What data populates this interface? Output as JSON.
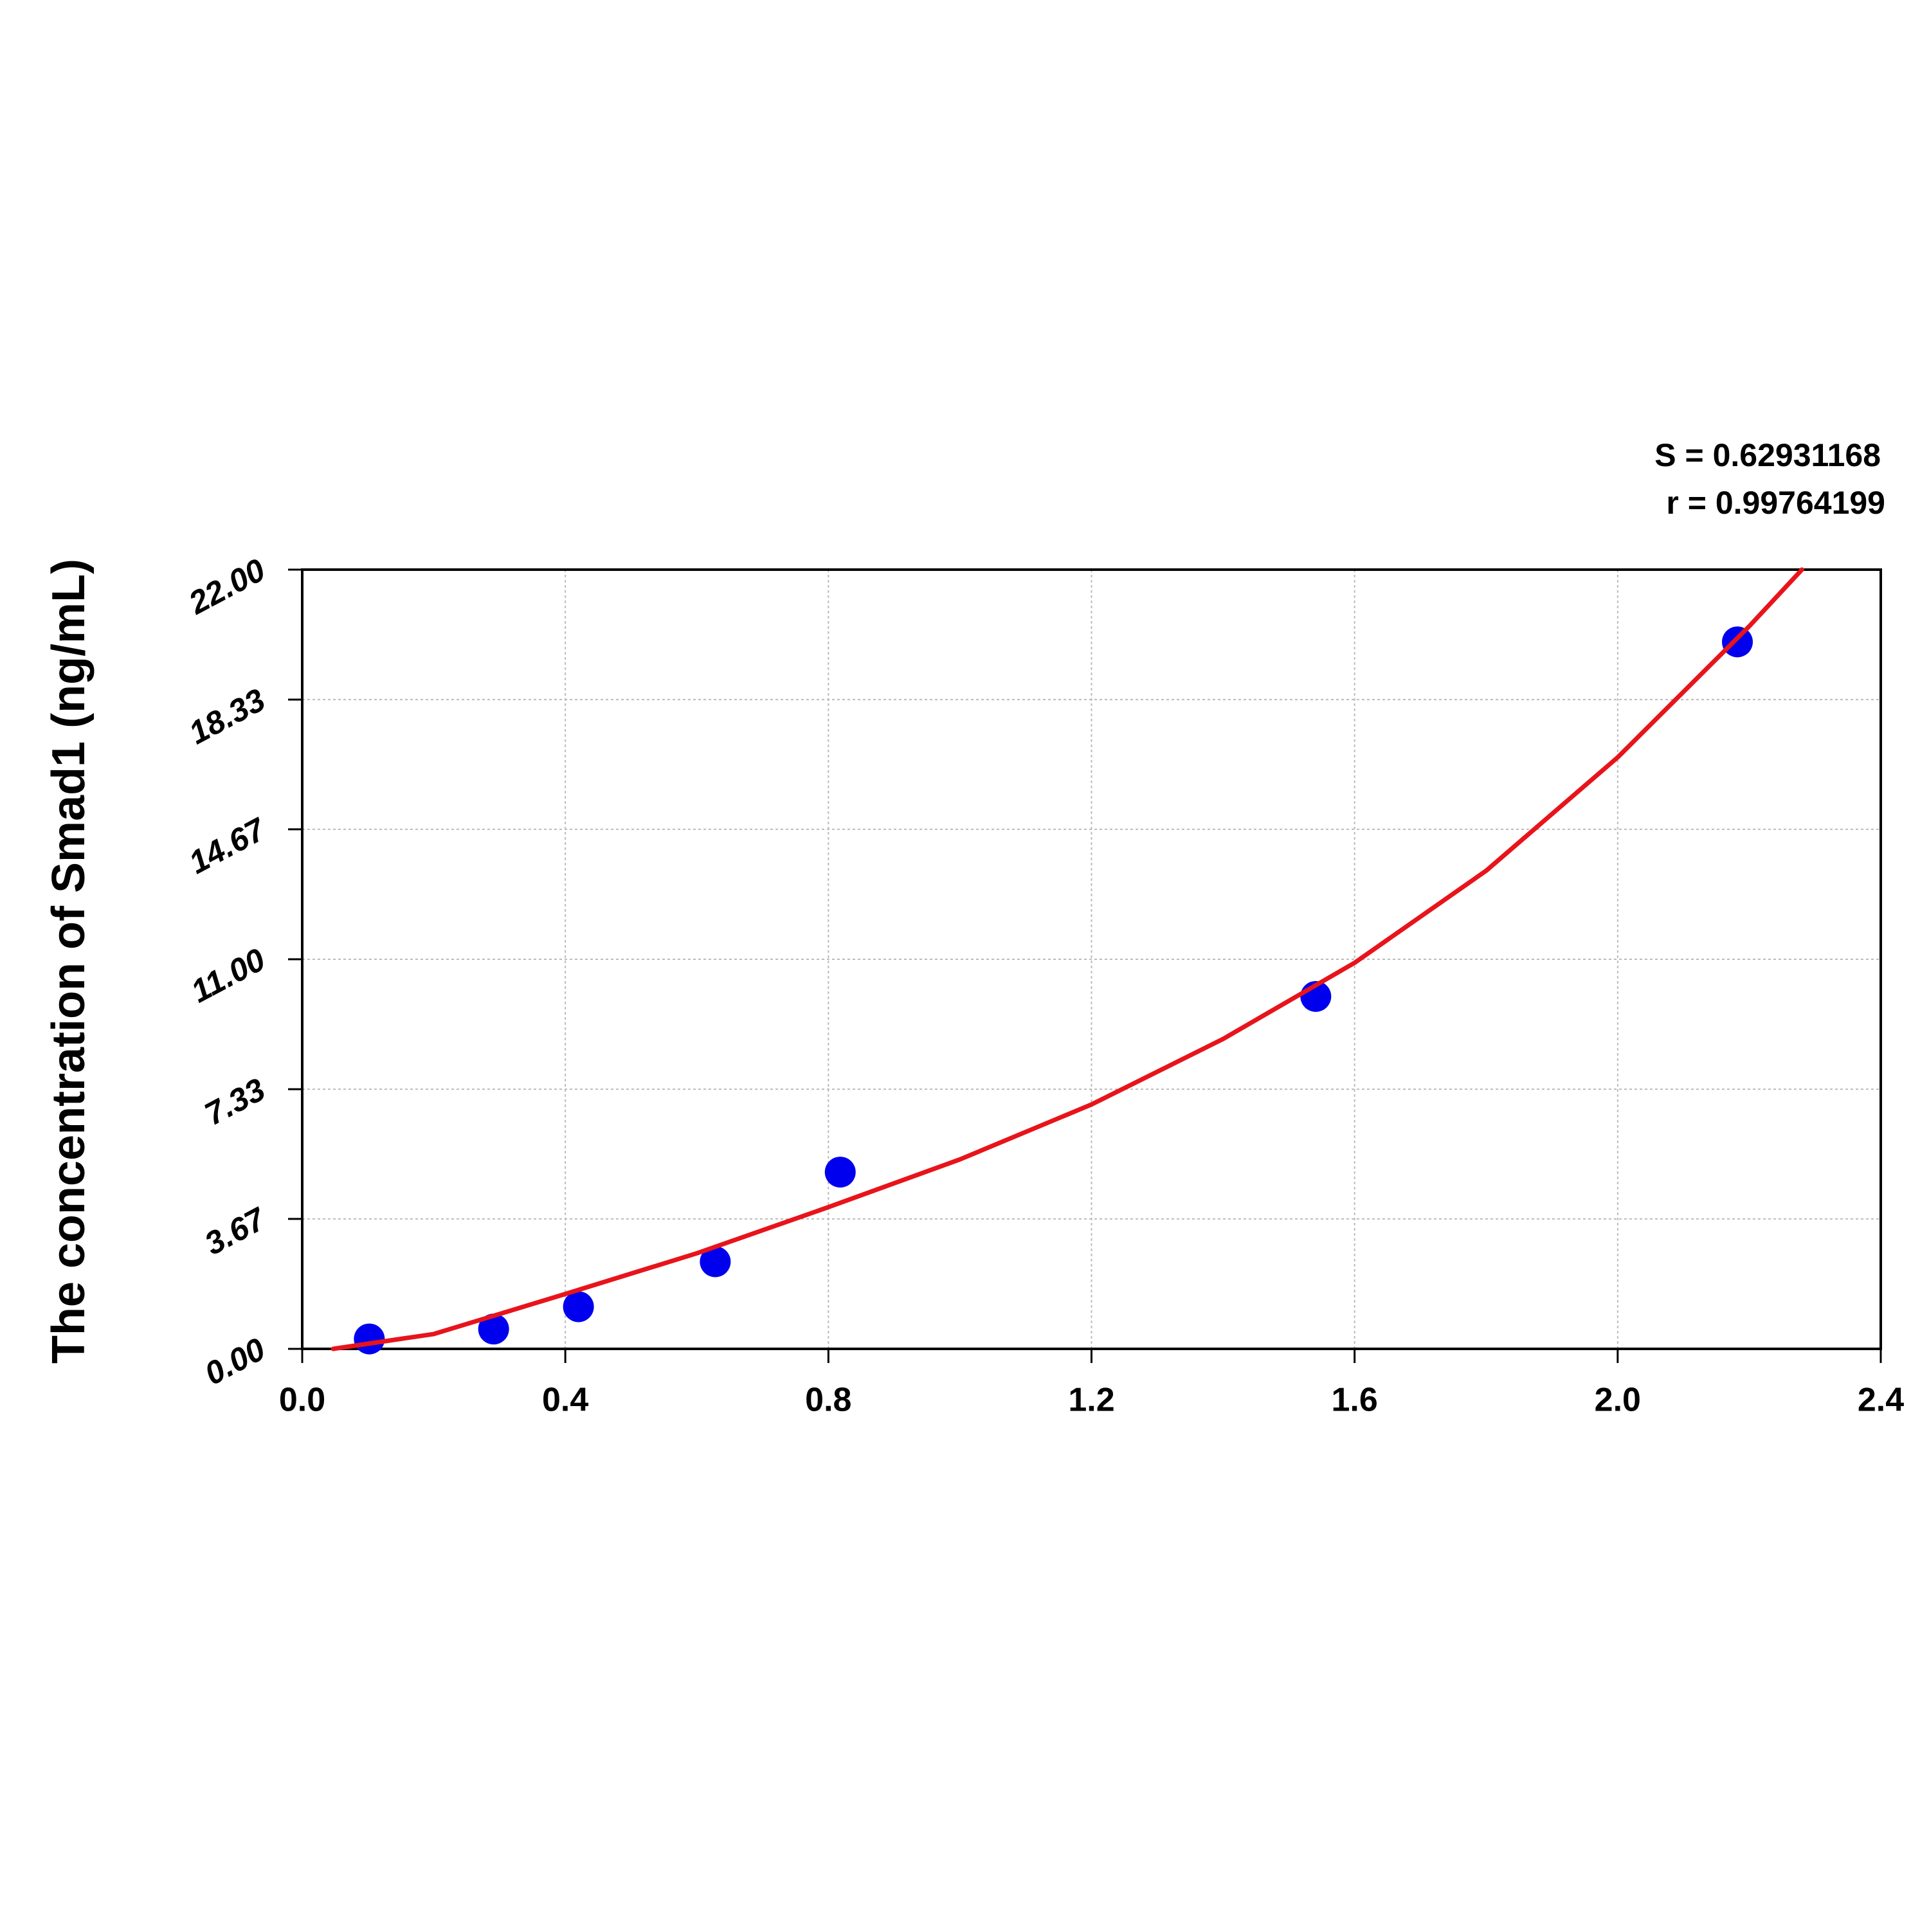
{
  "chart_data": {
    "type": "scatter",
    "y_label": "The concentration of Smad1 (ng/mL)",
    "annotations": [
      "S = 0.62931168",
      "r = 0.99764199"
    ],
    "xlim": [
      0,
      2.4
    ],
    "ylim": [
      0,
      22
    ],
    "xticks": [
      {
        "value": 0,
        "label": "0.0"
      },
      0.4,
      0.8,
      1.2,
      1.6,
      {
        "value": 2,
        "label": "2.0"
      },
      2.4
    ],
    "yticks": [
      {
        "value": 0,
        "label": "0.00"
      },
      3.67,
      7.33,
      {
        "value": 11,
        "label": "11.00"
      },
      14.67,
      18.33,
      {
        "value": 22,
        "label": "22.00"
      }
    ],
    "grid": true,
    "series": [
      {
        "type": "scatter",
        "color": "#0000ee",
        "x": [
          0.102,
          0.291,
          0.42,
          0.628,
          0.818,
          1.541,
          2.182
        ],
        "values": [
          0.28,
          0.56,
          1.19,
          2.46,
          4.99,
          9.95,
          19.96
        ]
      },
      {
        "type": "line",
        "color": "#e8141b",
        "x": [
          0.047,
          0.2,
          0.4,
          0.6,
          0.8,
          1.0,
          1.2,
          1.4,
          1.6,
          1.8,
          2.0,
          2.2,
          2.28
        ],
        "values": [
          0,
          0.42,
          1.55,
          2.7,
          4.0,
          5.35,
          6.9,
          8.75,
          10.9,
          13.5,
          16.7,
          20.4,
          22
        ]
      }
    ]
  }
}
